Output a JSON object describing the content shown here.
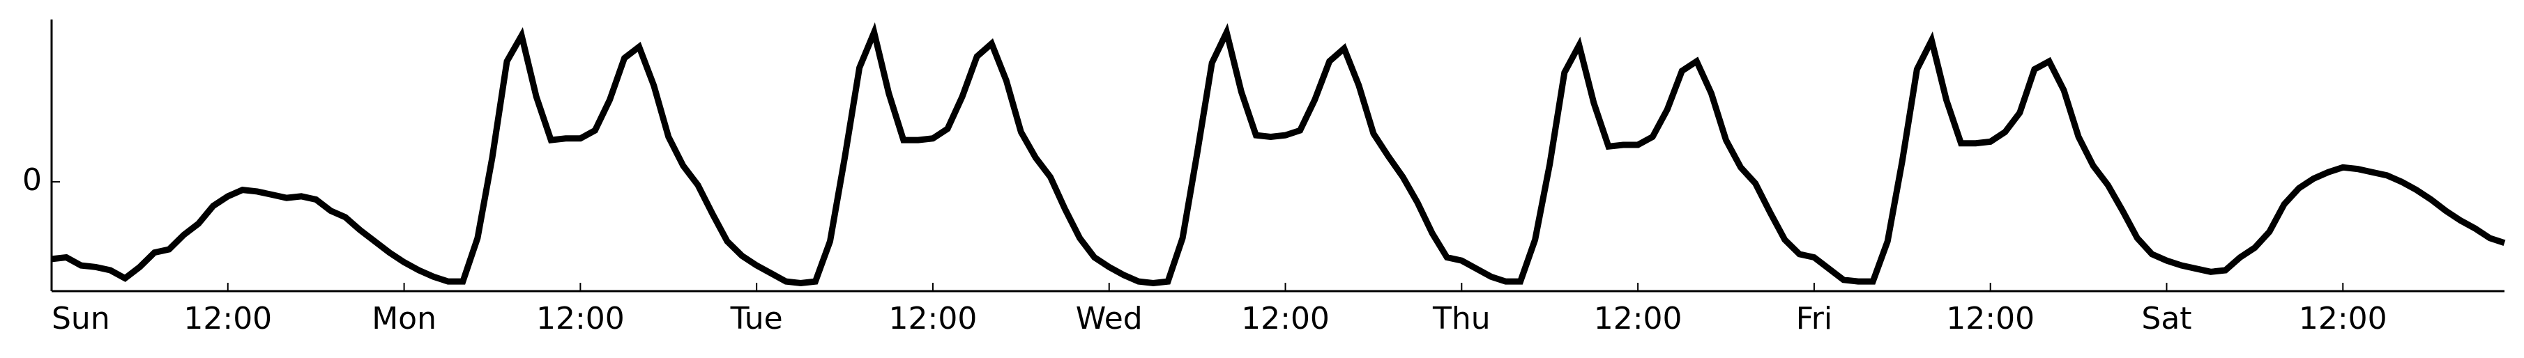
{
  "chart_data": {
    "type": "line",
    "x": [
      0,
      1,
      2,
      3,
      4,
      5,
      6,
      7,
      8,
      9,
      10,
      11,
      12,
      13,
      14,
      15,
      16,
      17,
      18,
      19,
      20,
      21,
      22,
      23,
      24,
      25,
      26,
      27,
      28,
      29,
      30,
      31,
      32,
      33,
      34,
      35,
      36,
      37,
      38,
      39,
      40,
      41,
      42,
      43,
      44,
      45,
      46,
      47,
      48,
      49,
      50,
      51,
      52,
      53,
      54,
      55,
      56,
      57,
      58,
      59,
      60,
      61,
      62,
      63,
      64,
      65,
      66,
      67,
      68,
      69,
      70,
      71,
      72,
      73,
      74,
      75,
      76,
      77,
      78,
      79,
      80,
      81,
      82,
      83,
      84,
      85,
      86,
      87,
      88,
      89,
      90,
      91,
      92,
      93,
      94,
      95,
      96,
      97,
      98,
      99,
      100,
      101,
      102,
      103,
      104,
      105,
      106,
      107,
      108,
      109,
      110,
      111,
      112,
      113,
      114,
      115,
      116,
      117,
      118,
      119,
      120,
      121,
      122,
      123,
      124,
      125,
      126,
      127,
      128,
      129,
      130,
      131,
      132,
      133,
      134,
      135,
      136,
      137,
      138,
      139,
      140,
      141,
      142,
      143,
      144,
      145,
      146,
      147,
      148,
      149,
      150,
      151,
      152,
      153,
      154,
      155,
      156,
      157,
      158,
      159,
      160,
      161,
      162,
      163,
      164,
      165,
      166,
      167
    ],
    "series": [
      {
        "color": "#000000",
        "values": [
          -0.96,
          -0.94,
          -1.04,
          -1.06,
          -1.1,
          -1.2,
          -1.06,
          -0.88,
          -0.84,
          -0.66,
          -0.52,
          -0.3,
          -0.18,
          -0.1,
          -0.12,
          -0.16,
          -0.2,
          -0.18,
          -0.22,
          -0.36,
          -0.44,
          -0.6,
          -0.74,
          -0.88,
          -1.0,
          -1.1,
          -1.18,
          -1.24,
          -1.24,
          -0.7,
          0.3,
          1.5,
          1.82,
          1.06,
          0.52,
          0.54,
          0.54,
          0.64,
          1.02,
          1.54,
          1.68,
          1.2,
          0.56,
          0.2,
          -0.04,
          -0.4,
          -0.74,
          -0.92,
          -1.04,
          -1.14,
          -1.24,
          -1.26,
          -1.24,
          -0.74,
          0.3,
          1.42,
          1.86,
          1.1,
          0.52,
          0.52,
          0.54,
          0.66,
          1.06,
          1.56,
          1.72,
          1.26,
          0.62,
          0.3,
          0.06,
          -0.34,
          -0.7,
          -0.94,
          -1.06,
          -1.16,
          -1.24,
          -1.26,
          -1.24,
          -0.7,
          0.36,
          1.48,
          1.86,
          1.12,
          0.58,
          0.56,
          0.58,
          0.64,
          1.02,
          1.5,
          1.66,
          1.2,
          0.6,
          0.32,
          0.06,
          -0.26,
          -0.64,
          -0.94,
          -0.98,
          -1.08,
          -1.18,
          -1.24,
          -1.24,
          -0.72,
          0.22,
          1.36,
          1.7,
          0.98,
          0.44,
          0.46,
          0.46,
          0.56,
          0.9,
          1.38,
          1.5,
          1.1,
          0.52,
          0.18,
          -0.02,
          -0.38,
          -0.72,
          -0.9,
          -0.94,
          -1.08,
          -1.22,
          -1.24,
          -1.24,
          -0.74,
          0.26,
          1.4,
          1.76,
          1.02,
          0.48,
          0.48,
          0.5,
          0.62,
          0.86,
          1.4,
          1.5,
          1.14,
          0.56,
          0.2,
          -0.04,
          -0.36,
          -0.7,
          -0.9,
          -0.98,
          -1.04,
          -1.08,
          -1.12,
          -1.1,
          -0.94,
          -0.82,
          -0.62,
          -0.28,
          -0.08,
          0.04,
          0.12,
          0.18,
          0.16,
          0.12,
          0.08,
          0.0,
          -0.1,
          -0.22,
          -0.36,
          -0.48,
          -0.58,
          -0.7,
          -0.76
        ]
      }
    ],
    "xlim": [
      0,
      167
    ],
    "xticks": [
      {
        "value": 0,
        "label": "Sun"
      },
      {
        "value": 12,
        "label": "12:00"
      },
      {
        "value": 24,
        "label": "Mon"
      },
      {
        "value": 36,
        "label": "12:00"
      },
      {
        "value": 48,
        "label": "Tue"
      },
      {
        "value": 60,
        "label": "12:00"
      },
      {
        "value": 72,
        "label": "Wed"
      },
      {
        "value": 84,
        "label": "12:00"
      },
      {
        "value": 96,
        "label": "Thu"
      },
      {
        "value": 108,
        "label": "12:00"
      },
      {
        "value": 120,
        "label": "Fri"
      },
      {
        "value": 132,
        "label": "12:00"
      },
      {
        "value": 144,
        "label": "Sat"
      },
      {
        "value": 156,
        "label": "12:00"
      }
    ],
    "ylim": [
      -1.36,
      2.02
    ],
    "yticks": [
      0
    ]
  }
}
